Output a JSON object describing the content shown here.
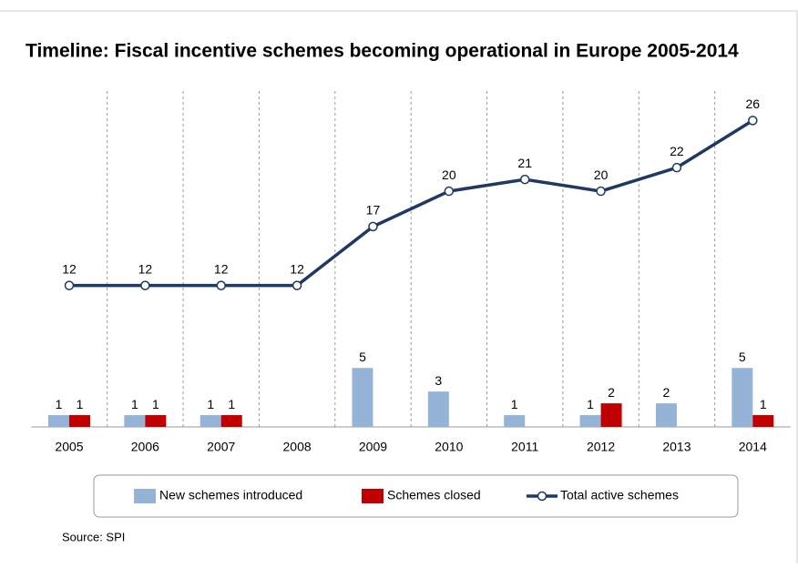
{
  "chart_data": {
    "type": "bar",
    "title": "Timeline: Fiscal incentive schemes becoming operational in Europe 2005-2014",
    "source": "Source: SPI",
    "categories": [
      "2005",
      "2006",
      "2007",
      "2008",
      "2009",
      "2010",
      "2011",
      "2012",
      "2013",
      "2014"
    ],
    "series": [
      {
        "name": "New schemes introduced",
        "color": "#95b3d7",
        "type": "bar",
        "values": [
          1,
          1,
          1,
          null,
          5,
          3,
          1,
          1,
          2,
          5
        ]
      },
      {
        "name": "Schemes closed",
        "color": "#c00000",
        "type": "bar",
        "values": [
          1,
          1,
          1,
          null,
          null,
          null,
          null,
          2,
          null,
          1
        ]
      },
      {
        "name": "Total active schemes",
        "color": "#1f3864",
        "type": "line",
        "values": [
          12,
          12,
          12,
          12,
          17,
          20,
          21,
          20,
          22,
          26
        ]
      }
    ],
    "ylim": [
      0,
      28.5
    ],
    "grid": true,
    "legend": "bottom"
  }
}
